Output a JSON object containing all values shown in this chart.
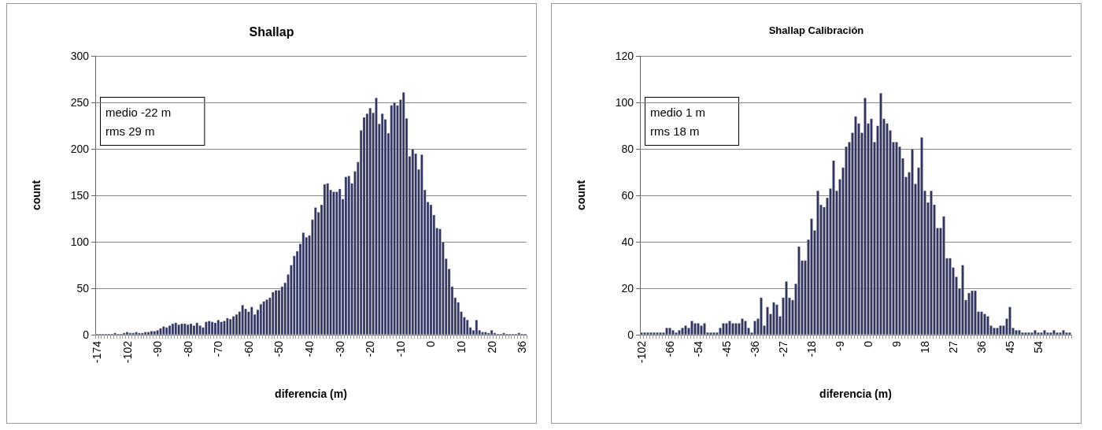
{
  "chart_data": [
    {
      "type": "bar",
      "title": "Shallap",
      "xlabel": "diferencia (m)",
      "ylabel": "count",
      "color": "#30345f",
      "grid": "y",
      "ylim": [
        0,
        300
      ],
      "yticks": [
        0,
        50,
        100,
        150,
        200,
        250,
        300
      ],
      "annotations": [
        "medio -22 m",
        "rms 29 m"
      ],
      "categories": [
        "-174",
        null,
        null,
        null,
        null,
        null,
        null,
        null,
        null,
        null,
        "-102",
        null,
        null,
        null,
        null,
        null,
        null,
        null,
        null,
        null,
        "-90",
        null,
        null,
        null,
        null,
        null,
        null,
        null,
        null,
        null,
        "-80",
        null,
        null,
        null,
        null,
        null,
        null,
        null,
        null,
        null,
        "-70",
        null,
        null,
        null,
        null,
        null,
        null,
        null,
        null,
        null,
        "-60",
        null,
        null,
        null,
        null,
        null,
        null,
        null,
        null,
        null,
        "-50",
        null,
        null,
        null,
        null,
        null,
        null,
        null,
        null,
        null,
        "-40",
        null,
        null,
        null,
        null,
        null,
        null,
        null,
        null,
        null,
        "-30",
        null,
        null,
        null,
        null,
        null,
        null,
        null,
        null,
        null,
        "-20",
        null,
        null,
        null,
        null,
        null,
        null,
        null,
        null,
        null,
        "-10",
        null,
        null,
        null,
        null,
        null,
        null,
        null,
        null,
        null,
        "0",
        null,
        null,
        null,
        null,
        null,
        null,
        null,
        null,
        null,
        "10",
        null,
        null,
        null,
        null,
        null,
        null,
        null,
        null,
        null,
        "20",
        null,
        null,
        null,
        null,
        null,
        null,
        null,
        null,
        null,
        "36",
        null
      ],
      "values": [
        1,
        1,
        1,
        1,
        1,
        1,
        2,
        1,
        1,
        2,
        3,
        2,
        2,
        3,
        2,
        2,
        3,
        3,
        4,
        4,
        5,
        7,
        9,
        8,
        10,
        12,
        13,
        11,
        12,
        12,
        11,
        12,
        10,
        13,
        10,
        8,
        14,
        15,
        14,
        13,
        16,
        14,
        15,
        18,
        17,
        20,
        22,
        25,
        32,
        28,
        25,
        30,
        22,
        27,
        33,
        36,
        38,
        40,
        46,
        48,
        48,
        52,
        56,
        65,
        75,
        85,
        90,
        98,
        110,
        105,
        107,
        124,
        137,
        132,
        140,
        162,
        163,
        156,
        154,
        154,
        157,
        146,
        170,
        171,
        163,
        176,
        186,
        220,
        234,
        238,
        244,
        239,
        255,
        227,
        238,
        232,
        217,
        247,
        250,
        247,
        253,
        261,
        233,
        192,
        200,
        195,
        178,
        194,
        156,
        143,
        140,
        129,
        115,
        114,
        100,
        82,
        71,
        52,
        40,
        35,
        25,
        19,
        16,
        8,
        5,
        16,
        5,
        3,
        3,
        2,
        5,
        2,
        1,
        1,
        2,
        1,
        1,
        1,
        1,
        2,
        1,
        1
      ]
    },
    {
      "type": "bar",
      "title": "Shallap Calibración",
      "xlabel": "diferencia (m)",
      "ylabel": "count",
      "color": "#30345f",
      "grid": "y",
      "ylim": [
        0,
        120
      ],
      "yticks": [
        0,
        20,
        40,
        60,
        80,
        100,
        120
      ],
      "annotations": [
        "medio 1 m",
        "rms 18 m"
      ],
      "categories": [
        "-102",
        null,
        null,
        null,
        null,
        null,
        null,
        null,
        null,
        "-66",
        null,
        null,
        null,
        null,
        null,
        null,
        null,
        null,
        "-54",
        null,
        null,
        null,
        null,
        null,
        null,
        null,
        null,
        "-45",
        null,
        null,
        null,
        null,
        null,
        null,
        null,
        null,
        "-36",
        null,
        null,
        null,
        null,
        null,
        null,
        null,
        null,
        "-27",
        null,
        null,
        null,
        null,
        null,
        null,
        null,
        null,
        "-18",
        null,
        null,
        null,
        null,
        null,
        null,
        null,
        null,
        "-9",
        null,
        null,
        null,
        null,
        null,
        null,
        null,
        null,
        "0",
        null,
        null,
        null,
        null,
        null,
        null,
        null,
        null,
        "9",
        null,
        null,
        null,
        null,
        null,
        null,
        null,
        null,
        "18",
        null,
        null,
        null,
        null,
        null,
        null,
        null,
        null,
        "27",
        null,
        null,
        null,
        null,
        null,
        null,
        null,
        null,
        "36",
        null,
        null,
        null,
        null,
        null,
        null,
        null,
        null,
        "45",
        null,
        null,
        null,
        null,
        null,
        null,
        null,
        null,
        "54",
        null,
        null,
        null,
        null,
        null,
        null,
        null,
        null,
        null,
        null
      ],
      "values": [
        1,
        1,
        1,
        1,
        1,
        1,
        1,
        1,
        3,
        3,
        2,
        1,
        2,
        3,
        4,
        3,
        6,
        5,
        5,
        4,
        5,
        1,
        1,
        1,
        1,
        3,
        5,
        5,
        6,
        5,
        5,
        5,
        7,
        6,
        3,
        1,
        6,
        7,
        16,
        4,
        12,
        9,
        14,
        13,
        8,
        16,
        23,
        16,
        15,
        22,
        38,
        32,
        32,
        41,
        50,
        45,
        62,
        56,
        55,
        59,
        63,
        75,
        62,
        67,
        72,
        81,
        83,
        87,
        94,
        91,
        87,
        102,
        91,
        93,
        83,
        90,
        104,
        93,
        91,
        88,
        83,
        83,
        81,
        76,
        68,
        70,
        80,
        65,
        72,
        85,
        62,
        57,
        62,
        56,
        46,
        46,
        51,
        33,
        33,
        29,
        25,
        20,
        30,
        15,
        18,
        19,
        19,
        10,
        10,
        9,
        8,
        4,
        3,
        3,
        4,
        4,
        7,
        12,
        3,
        2,
        2,
        1,
        1,
        1,
        1,
        2,
        1,
        1,
        2,
        1,
        1,
        2,
        1,
        1,
        2,
        1,
        1
      ]
    }
  ]
}
